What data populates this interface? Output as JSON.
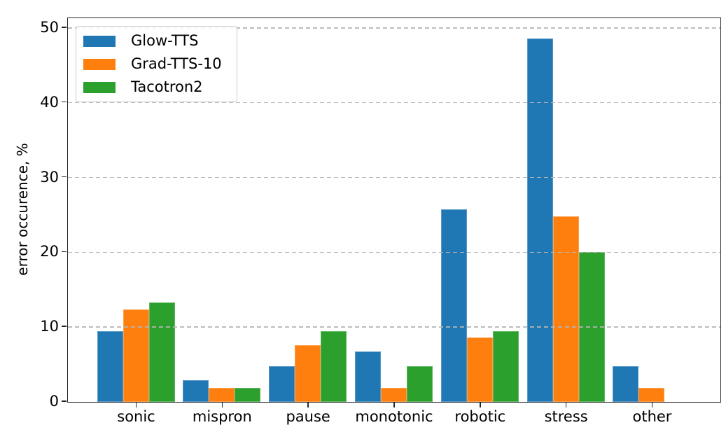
{
  "figure": {
    "background": "#ffffff"
  },
  "chart_data": {
    "type": "bar",
    "title": "",
    "xlabel": "",
    "ylabel": "error occurence, %",
    "categories": [
      "sonic",
      "mispron",
      "pause",
      "monotonic",
      "robotic",
      "stress",
      "other"
    ],
    "series": [
      {
        "name": "Glow-TTS",
        "color": "#1f77b4",
        "values": [
          9.5,
          2.9,
          4.8,
          6.7,
          25.7,
          48.6,
          4.8
        ]
      },
      {
        "name": "Grad-TTS-10",
        "color": "#ff7f0e",
        "values": [
          12.4,
          1.9,
          7.6,
          1.9,
          8.6,
          24.8,
          1.9
        ]
      },
      {
        "name": "Tacotron2",
        "color": "#2ca02c",
        "values": [
          13.3,
          1.9,
          9.5,
          4.8,
          9.5,
          20.0,
          0
        ]
      }
    ],
    "ylim": [
      0,
      51.3
    ],
    "yticks": [
      0,
      10,
      20,
      30,
      40,
      50
    ],
    "grid": {
      "axis": "y",
      "style": "dashed",
      "color": "#b0b0b0",
      "over_bars": true
    },
    "legend": {
      "position": "upper left",
      "entries": [
        "Glow-TTS",
        "Grad-TTS-10",
        "Tacotron2"
      ]
    }
  }
}
